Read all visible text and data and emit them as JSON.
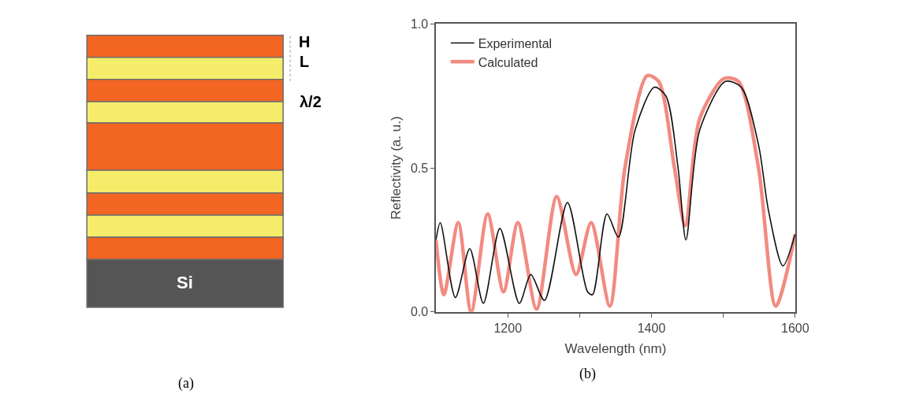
{
  "chart_data": [
    {
      "type": "other",
      "annotations": [
        "H",
        "L",
        "λ/2",
        "Si",
        "(a)"
      ]
    },
    {
      "type": "line",
      "xlabel": "Wavelength (nm)",
      "ylabel": "Reflectivity (a. u.)",
      "annotations": [
        "(b)"
      ],
      "xlim": [
        1100,
        1600
      ],
      "xticks": [
        {
          "value": 1200,
          "label": "1200"
        },
        {
          "value": 1300,
          "label": null
        },
        {
          "value": 1400,
          "label": "1400"
        },
        {
          "value": 1500,
          "label": null
        },
        {
          "value": 1600,
          "label": "1600"
        }
      ],
      "ylim": [
        0,
        1
      ],
      "yticks": [
        {
          "value": 0,
          "label": "0.0"
        },
        {
          "value": 0.5,
          "label": "0.5"
        },
        {
          "value": 1,
          "label": "1.0"
        }
      ],
      "legend": "top left",
      "marker": "none",
      "series": [
        {
          "name": "Experimental",
          "color": "#111111",
          "x": [
            1100,
            1106,
            1127,
            1147,
            1166,
            1189,
            1216,
            1232,
            1251,
            1283,
            1311,
            1318,
            1338,
            1354,
            1377,
            1404,
            1420,
            1437,
            1448,
            1467,
            1503,
            1525,
            1549,
            1563,
            1583,
            1600
          ],
          "values": [
            0.25,
            0.31,
            0.05,
            0.22,
            0.03,
            0.29,
            0.03,
            0.13,
            0.04,
            0.38,
            0.07,
            0.06,
            0.34,
            0.26,
            0.63,
            0.78,
            0.75,
            0.5,
            0.25,
            0.63,
            0.8,
            0.78,
            0.58,
            0.35,
            0.16,
            0.27
          ]
        },
        {
          "name": "Calculated",
          "color": "#f28b82",
          "x": [
            1100,
            1111,
            1131,
            1149,
            1172,
            1194,
            1214,
            1240,
            1268,
            1295,
            1316,
            1342,
            1363,
            1394,
            1410,
            1432,
            1447,
            1467,
            1501,
            1521,
            1549,
            1573,
            1600
          ],
          "values": [
            0.25,
            0.06,
            0.31,
            0.0,
            0.34,
            0.07,
            0.31,
            0.01,
            0.4,
            0.13,
            0.31,
            0.02,
            0.5,
            0.82,
            0.8,
            0.5,
            0.3,
            0.67,
            0.81,
            0.8,
            0.5,
            0.02,
            0.27
          ]
        }
      ]
    }
  ]
}
